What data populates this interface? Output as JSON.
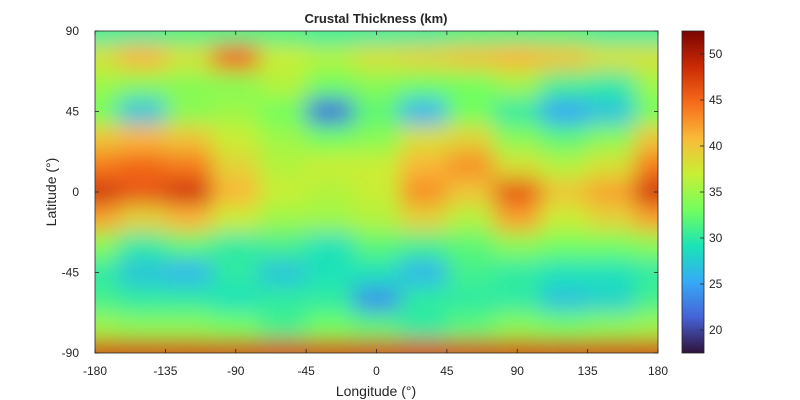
{
  "chart_data": {
    "type": "heatmap",
    "title": "Crustal Thickness (km)",
    "xlabel": "Longitude (°)",
    "ylabel": "Latitude (°)",
    "xlim": [
      -180,
      180
    ],
    "ylim": [
      -90,
      90
    ],
    "x_ticks": [
      -180,
      -135,
      -90,
      -45,
      0,
      45,
      90,
      135,
      180
    ],
    "y_ticks": [
      -90,
      -45,
      0,
      45,
      90
    ],
    "x_tick_labels": [
      "-180",
      "-135",
      "-90",
      "-45",
      "0",
      "45",
      "90",
      "135",
      "180"
    ],
    "y_tick_labels": [
      "-90",
      "-45",
      "0",
      "45",
      "90"
    ],
    "colorbar": {
      "min": 17.5,
      "max": 52.5,
      "ticks": [
        20,
        25,
        30,
        35,
        40,
        45,
        50
      ],
      "tick_labels": [
        "20",
        "25",
        "30",
        "35",
        "40",
        "45",
        "50"
      ],
      "colormap": "turbo",
      "stops": [
        "#30123b",
        "#4662d7",
        "#35abf8",
        "#1ae4b6",
        "#72fe5e",
        "#c8ef34",
        "#faba39",
        "#f66b19",
        "#cb2a04",
        "#7a0403"
      ]
    },
    "grid": false,
    "longitudes": [
      -180,
      -150,
      -120,
      -90,
      -60,
      -30,
      0,
      30,
      60,
      90,
      120,
      150,
      180
    ],
    "latitudes": [
      90,
      75,
      60,
      45,
      30,
      15,
      0,
      -15,
      -30,
      -45,
      -60,
      -75,
      -90
    ],
    "z": [
      [
        30,
        30,
        31,
        31,
        31,
        30,
        30,
        30,
        31,
        31,
        31,
        30,
        30
      ],
      [
        38,
        41,
        38,
        45,
        37,
        36,
        38,
        39,
        40,
        41,
        40,
        38,
        38
      ],
      [
        35,
        34,
        34,
        34,
        36,
        33,
        34,
        33,
        33,
        35,
        31,
        30,
        35
      ],
      [
        33,
        27,
        34,
        35,
        33,
        22,
        32,
        26,
        33,
        30,
        25,
        27,
        33
      ],
      [
        40,
        41,
        40,
        37,
        35,
        33,
        34,
        38,
        39,
        34,
        32,
        34,
        40
      ],
      [
        44,
        45,
        44,
        39,
        36,
        37,
        37,
        41,
        43,
        38,
        36,
        38,
        44
      ],
      [
        48,
        46,
        48,
        41,
        37,
        36,
        37,
        43,
        40,
        46,
        40,
        42,
        48
      ],
      [
        42,
        39,
        41,
        37,
        35,
        35,
        36,
        39,
        36,
        42,
        37,
        39,
        42
      ],
      [
        34,
        30,
        32,
        30,
        31,
        29,
        32,
        31,
        32,
        34,
        33,
        33,
        34
      ],
      [
        30,
        27,
        26,
        30,
        27,
        29,
        29,
        26,
        31,
        30,
        29,
        29,
        30
      ],
      [
        31,
        30,
        30,
        29,
        30,
        30,
        24,
        30,
        30,
        30,
        27,
        28,
        31
      ],
      [
        35,
        34,
        34,
        33,
        31,
        33,
        32,
        30,
        32,
        34,
        33,
        34,
        35
      ],
      [
        48,
        48,
        48,
        48,
        48,
        48,
        48,
        48,
        48,
        48,
        48,
        48,
        48
      ]
    ]
  }
}
